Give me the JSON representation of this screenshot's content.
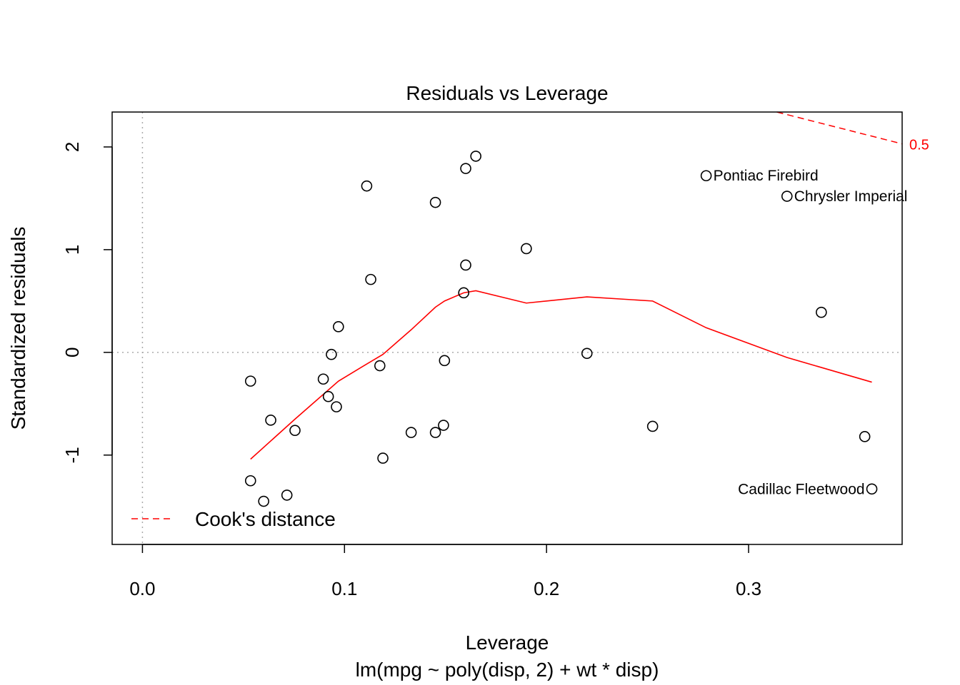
{
  "chart_data": {
    "type": "scatter",
    "title": "Residuals vs Leverage",
    "xlabel": "Leverage",
    "subtitle": "lm(mpg ~ poly(disp, 2) + wt * disp)",
    "ylabel": "Standardized residuals",
    "xlim": [
      -0.015,
      0.376
    ],
    "ylim": [
      -1.87,
      2.34
    ],
    "x_ticks": [
      0.0,
      0.1,
      0.2,
      0.3
    ],
    "x_tick_labels": [
      "0.0",
      "0.1",
      "0.2",
      "0.3"
    ],
    "y_ticks": [
      -1,
      0,
      1,
      2
    ],
    "y_tick_labels": [
      "-1",
      "0",
      "1",
      "2"
    ],
    "reference_lines": {
      "x": 0,
      "y": 0,
      "style": "dotted",
      "color": "#aaaaaa"
    },
    "points": [
      {
        "x": 0.0535,
        "y": -0.28
      },
      {
        "x": 0.0535,
        "y": -1.25
      },
      {
        "x": 0.06,
        "y": -1.45
      },
      {
        "x": 0.0635,
        "y": -0.66
      },
      {
        "x": 0.0715,
        "y": -1.39
      },
      {
        "x": 0.0755,
        "y": -0.76
      },
      {
        "x": 0.0895,
        "y": -0.26
      },
      {
        "x": 0.092,
        "y": -0.43
      },
      {
        "x": 0.0935,
        "y": -0.02
      },
      {
        "x": 0.096,
        "y": -0.53
      },
      {
        "x": 0.097,
        "y": 0.25
      },
      {
        "x": 0.111,
        "y": 1.62
      },
      {
        "x": 0.113,
        "y": 0.71
      },
      {
        "x": 0.1175,
        "y": -0.13
      },
      {
        "x": 0.119,
        "y": -1.03
      },
      {
        "x": 0.133,
        "y": -0.78
      },
      {
        "x": 0.145,
        "y": 1.46
      },
      {
        "x": 0.145,
        "y": -0.78
      },
      {
        "x": 0.149,
        "y": -0.71
      },
      {
        "x": 0.1495,
        "y": -0.08
      },
      {
        "x": 0.159,
        "y": 0.58
      },
      {
        "x": 0.16,
        "y": 0.85
      },
      {
        "x": 0.16,
        "y": 1.79
      },
      {
        "x": 0.165,
        "y": 1.91
      },
      {
        "x": 0.19,
        "y": 1.01
      },
      {
        "x": 0.22,
        "y": -0.01
      },
      {
        "x": 0.2525,
        "y": -0.72
      },
      {
        "x": 0.279,
        "y": 1.72
      },
      {
        "x": 0.319,
        "y": 1.52
      },
      {
        "x": 0.336,
        "y": 0.39
      },
      {
        "x": 0.3575,
        "y": -0.82
      },
      {
        "x": 0.361,
        "y": -1.33
      }
    ],
    "point_labels": [
      {
        "text": "Pontiac Firebird",
        "x": 0.279,
        "y": 1.72,
        "side": "right"
      },
      {
        "text": "Chrysler Imperial",
        "x": 0.319,
        "y": 1.52,
        "side": "right"
      },
      {
        "text": "Cadillac Fleetwood",
        "x": 0.361,
        "y": -1.33,
        "side": "left"
      }
    ],
    "smooth_line": {
      "color": "#ff0000",
      "x": [
        0.0535,
        0.0755,
        0.097,
        0.113,
        0.119,
        0.133,
        0.145,
        0.1495,
        0.159,
        0.165,
        0.19,
        0.22,
        0.2525,
        0.279,
        0.319,
        0.361
      ],
      "y": [
        -1.04,
        -0.65,
        -0.28,
        -0.09,
        -0.02,
        0.22,
        0.44,
        0.5,
        0.58,
        0.6,
        0.48,
        0.54,
        0.5,
        0.24,
        -0.05,
        -0.29
      ]
    },
    "cooks_distance": {
      "name": "Cook's distance",
      "color": "#ff0000",
      "style": "dashed",
      "level_label": "0.5",
      "curve": {
        "x": [
          0.314,
          0.376
        ],
        "y": [
          2.34,
          2.03
        ]
      }
    },
    "legend": {
      "entries": [
        "Cook's distance"
      ],
      "position": "bottom-left"
    },
    "grid": false
  }
}
